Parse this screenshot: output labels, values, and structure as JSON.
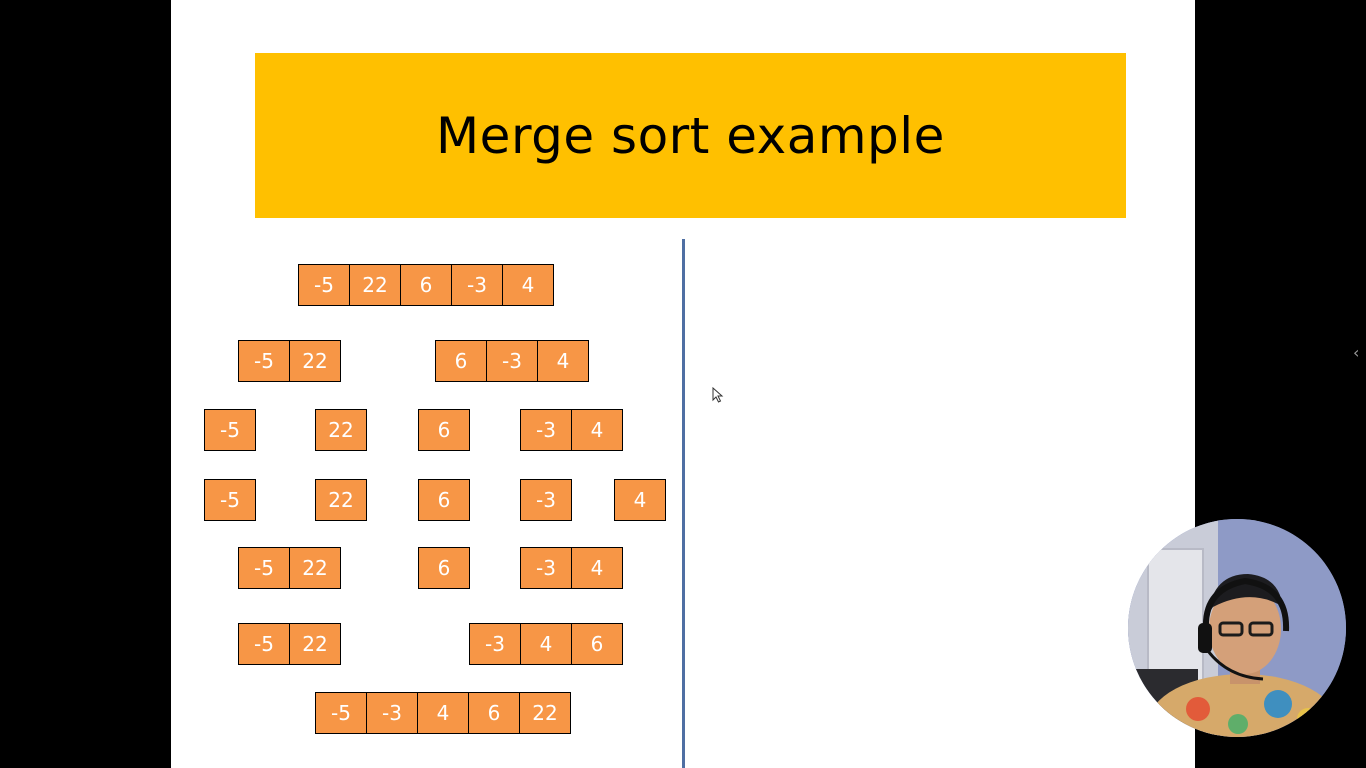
{
  "slide": {
    "title": "Merge sort example",
    "colors": {
      "title_bg": "#FFC000",
      "cell_bg": "#F79646",
      "divider": "#4F6FA3",
      "background": "#000000"
    },
    "rows": [
      {
        "groups": [
          [
            "-5",
            "22",
            "6",
            "-3",
            "4"
          ]
        ]
      },
      {
        "groups": [
          [
            "-5",
            "22"
          ],
          [
            "6",
            "-3",
            "4"
          ]
        ]
      },
      {
        "groups": [
          [
            "-5"
          ],
          [
            "22"
          ],
          [
            "6"
          ],
          [
            "-3",
            "4"
          ]
        ]
      },
      {
        "groups": [
          [
            "-5"
          ],
          [
            "22"
          ],
          [
            "6"
          ],
          [
            "-3"
          ],
          [
            "4"
          ]
        ]
      },
      {
        "groups": [
          [
            "-5",
            "22"
          ],
          [
            "6"
          ],
          [
            "-3",
            "4"
          ]
        ]
      },
      {
        "groups": [
          [
            "-5",
            "22"
          ],
          [
            "-3",
            "4",
            "6"
          ]
        ]
      },
      {
        "groups": [
          [
            "-5",
            "-3",
            "4",
            "6",
            "22"
          ]
        ]
      }
    ]
  },
  "overlay": {
    "side_panel_icon": "chevron-left-icon",
    "side_panel_glyph": "‹",
    "cursor_icon": "mouse-pointer-icon",
    "webcam": "presenter-webcam"
  }
}
